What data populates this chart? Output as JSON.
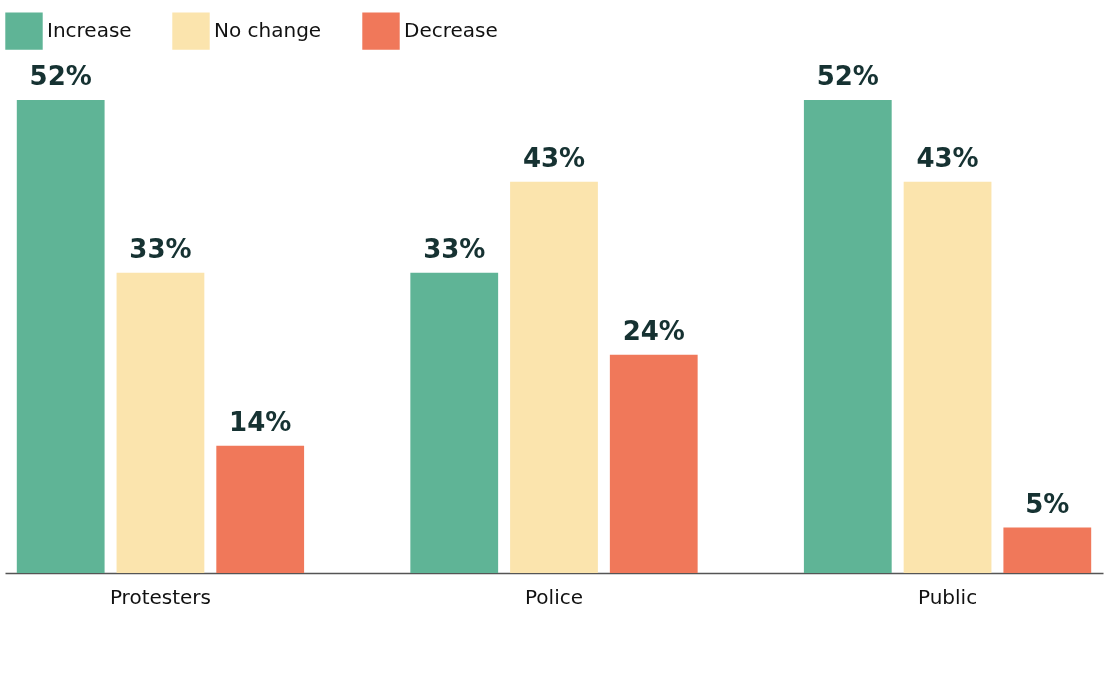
{
  "chart_data": {
    "type": "bar",
    "categories": [
      "Protesters",
      "Police",
      "Public"
    ],
    "series": [
      {
        "name": "Increase",
        "color": "#5fb496",
        "values": [
          52,
          33,
          52
        ],
        "value_labels": [
          "52%",
          "33%",
          "52%"
        ]
      },
      {
        "name": "No change",
        "color": "#fbe4ad",
        "values": [
          33,
          43,
          43
        ],
        "value_labels": [
          "33%",
          "43%",
          "43%"
        ]
      },
      {
        "name": "Decrease",
        "color": "#f0785a",
        "values": [
          14,
          24,
          5
        ],
        "value_labels": [
          "14%",
          "24%",
          "5%"
        ]
      }
    ],
    "legend": "top",
    "tick_labels": "x",
    "grid": false
  }
}
